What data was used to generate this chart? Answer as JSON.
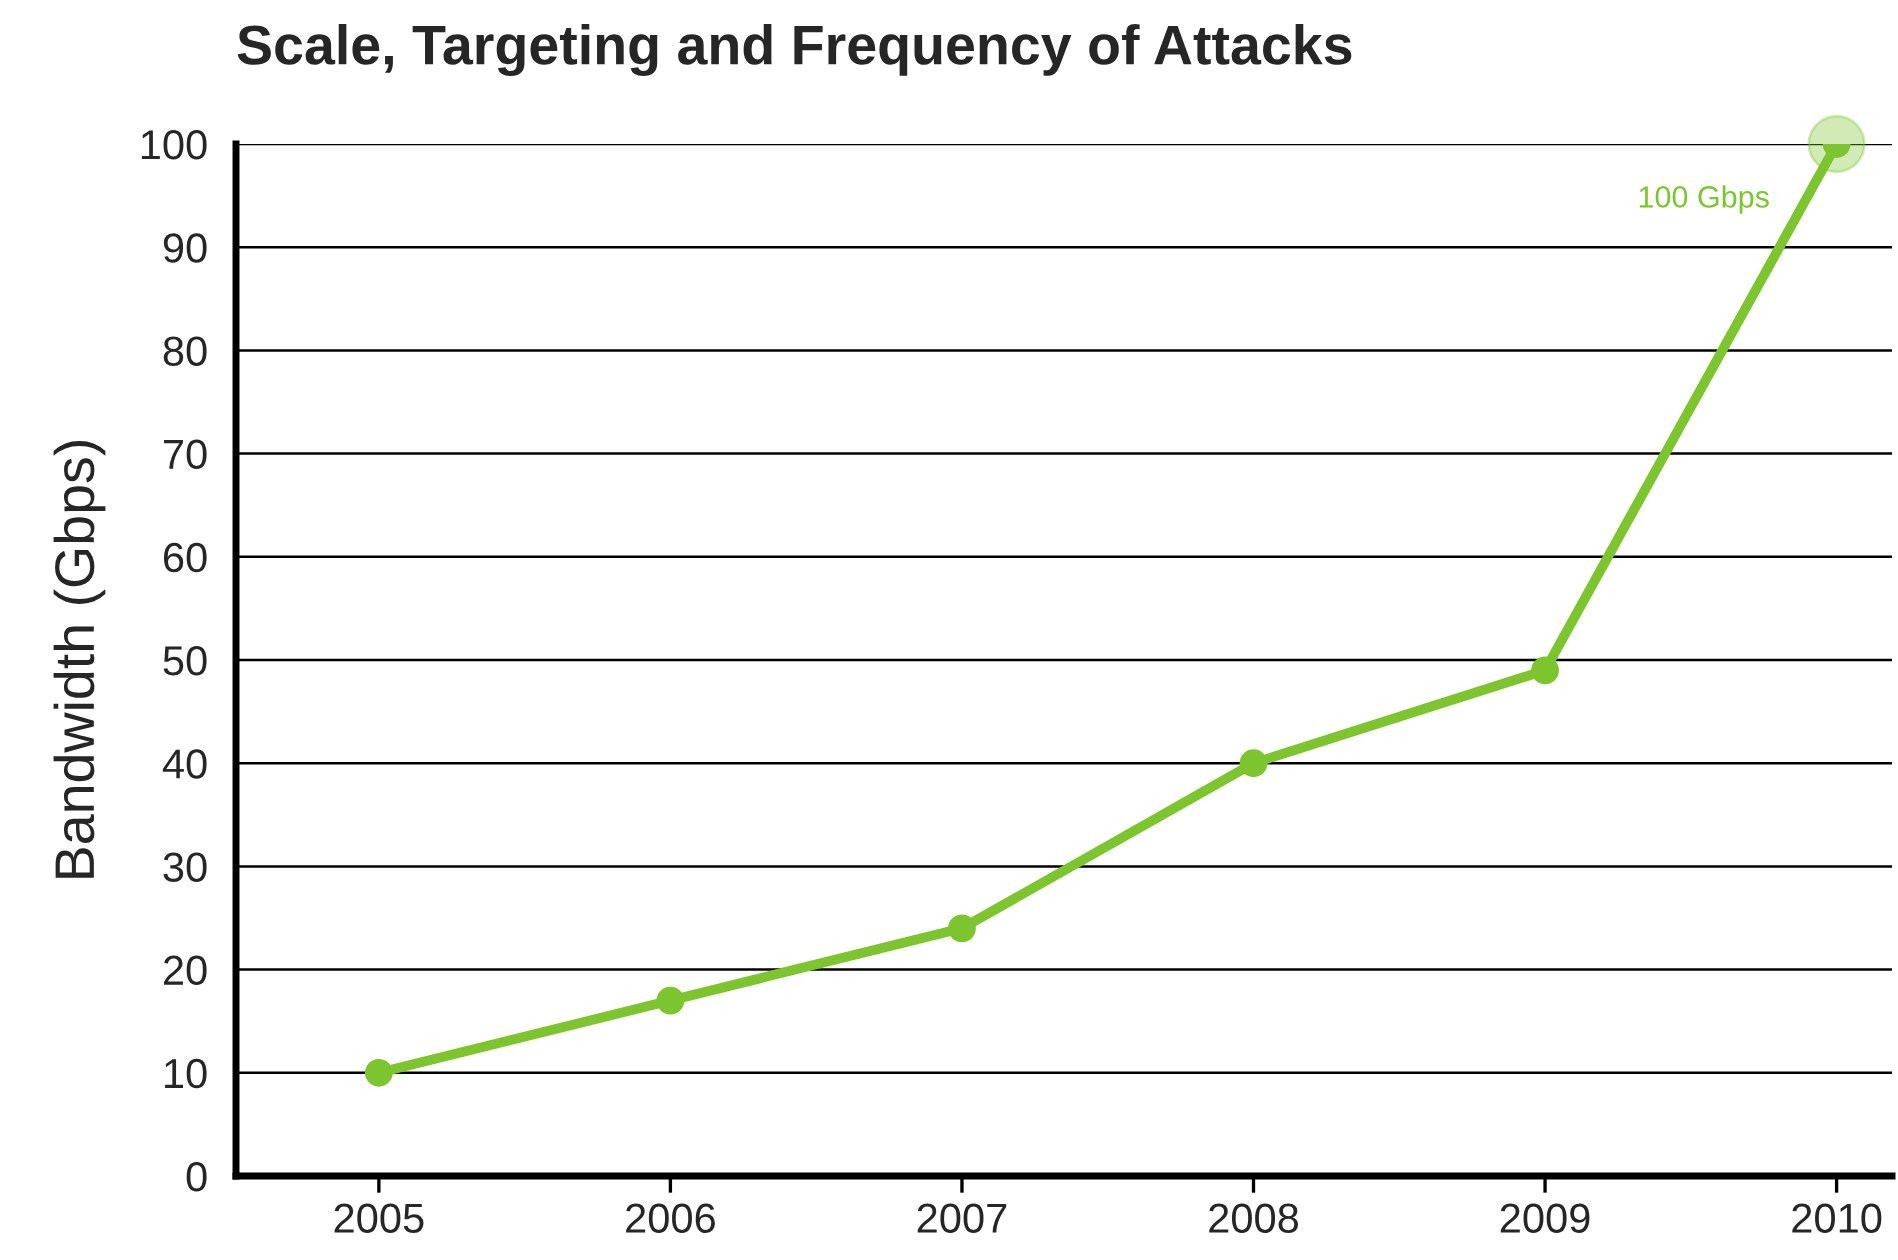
{
  "chart_data": {
    "type": "line",
    "title": "Scale, Targeting and Frequency of Attacks",
    "ylabel": "Bandwidth (Gbps)",
    "categories": [
      "2005",
      "2006",
      "2007",
      "2008",
      "2009",
      "2010"
    ],
    "series": [
      {
        "color": "#7dc52e",
        "values": [
          10,
          17,
          24,
          40,
          49,
          100
        ]
      }
    ],
    "annotations": [
      {
        "text": "100 Gbps",
        "x": "2010",
        "y": 100
      }
    ],
    "ylim": [
      0,
      100
    ],
    "yticks": [
      0,
      10,
      20,
      30,
      40,
      50,
      60,
      70,
      80,
      90,
      100
    ],
    "grid": "y",
    "marker": "circle",
    "line_style": "solid",
    "legend": false
  }
}
